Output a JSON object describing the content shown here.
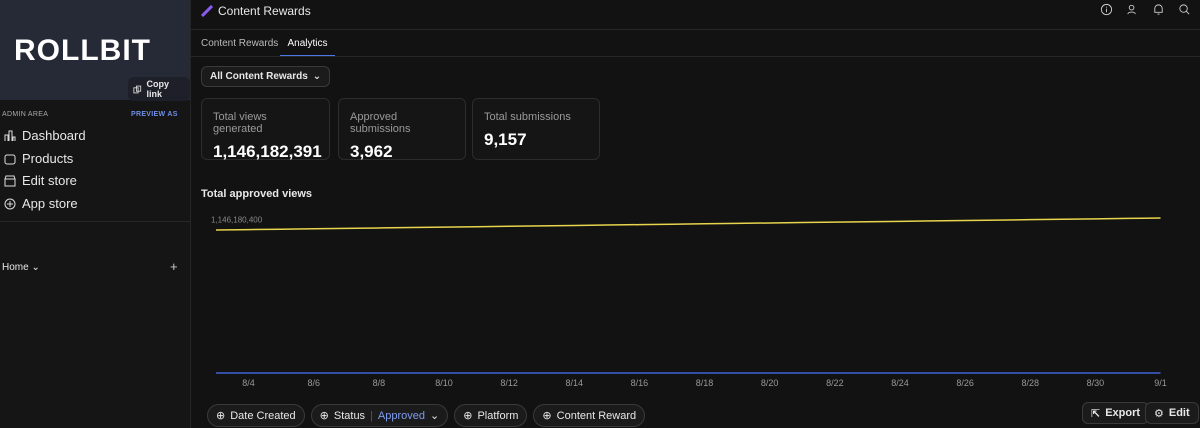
{
  "sidebar": {
    "logo": "ROLLBIT",
    "copy_link": "Copy link",
    "admin_area": "ADMIN AREA",
    "preview_as": "PREVIEW AS",
    "nav": [
      "Dashboard",
      "Products",
      "Edit store",
      "App store"
    ],
    "home": "Home"
  },
  "header": {
    "title": "Content Rewards"
  },
  "tabs": [
    "Content Rewards",
    "Analytics"
  ],
  "filter": "All Content Rewards",
  "stats": [
    {
      "label": "Total views generated",
      "value": "1,146,182,391"
    },
    {
      "label": "Approved submissions",
      "value": "3,962"
    },
    {
      "label": "Total submissions",
      "value": "9,157"
    }
  ],
  "chart_data": {
    "type": "line",
    "title": "Total approved views",
    "categories": [
      null,
      "8/4",
      null,
      "8/6",
      null,
      "8/8",
      null,
      "8/10",
      null,
      "8/12",
      null,
      "8/14",
      null,
      "8/16",
      null,
      "8/18",
      null,
      "8/20",
      null,
      "8/22",
      null,
      "8/24",
      null,
      "8/26",
      null,
      "8/28",
      null,
      "8/30",
      null,
      "9/1"
    ],
    "series": [
      {
        "color": "#e8d44d",
        "values": [
          1033000000,
          1036000000,
          1039000000,
          1042000000,
          1045000000,
          1048000000,
          1051000000,
          1054000000,
          1057000000,
          1060000000,
          1063000000,
          1066000000,
          1069000000,
          1072000000,
          1075000000,
          1078000000,
          1081000000,
          1084000000,
          1087000000,
          1090000000,
          1093000000,
          1096000000,
          1099000000,
          1102000000,
          1105000000,
          1108000000,
          1111000000,
          1114000000,
          1117000000,
          1120000000
        ]
      },
      {
        "color": "#3f63d8",
        "values": [
          0,
          0,
          0,
          0,
          0,
          0,
          0,
          0,
          0,
          0,
          0,
          0,
          0,
          0,
          0,
          0,
          0,
          0,
          0,
          0,
          0,
          0,
          0,
          0,
          0,
          0,
          0,
          0,
          0,
          0
        ]
      }
    ],
    "ylim": [
      0,
      1250000000
    ],
    "yticks": [
      {
        "value": 1146180400,
        "label": "1,146,180,400"
      }
    ]
  },
  "bottom_filters": [
    "Date Created",
    "Status",
    "Approved",
    "Platform",
    "Content Reward"
  ],
  "actions": [
    "Export",
    "Edit"
  ]
}
